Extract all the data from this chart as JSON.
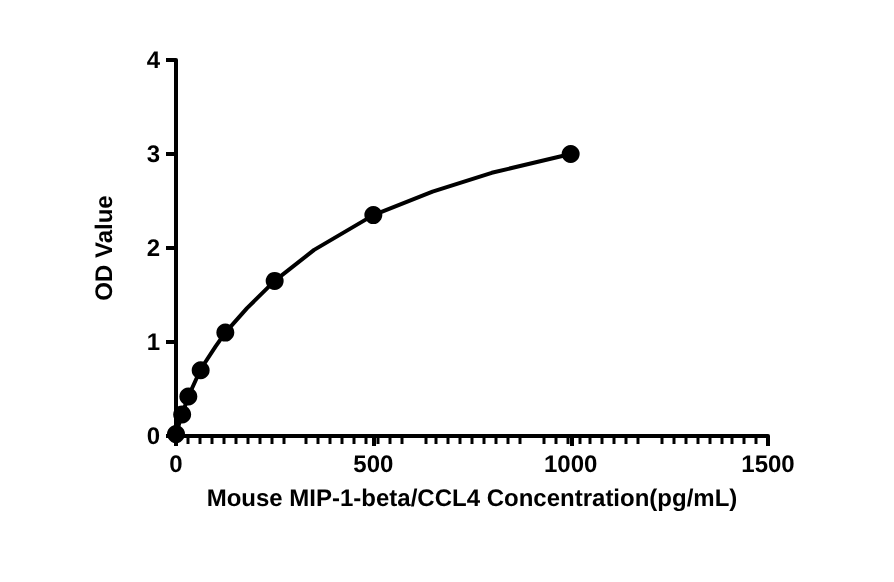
{
  "chart_data": {
    "type": "scatter",
    "xlabel": "Mouse MIP-1-beta/CCL4 Concentration(pg/mL)",
    "ylabel": "OD Value",
    "xlim": [
      0,
      1500
    ],
    "xticks": [
      0,
      500,
      1000,
      1500
    ],
    "ylim": [
      0,
      4
    ],
    "yticks": [
      0,
      1,
      2,
      3,
      4
    ],
    "grid": false,
    "marker": "circle",
    "series": [
      {
        "type": "line",
        "marker": "none",
        "line_style": "solid",
        "color": "#000000",
        "x": [
          0,
          8,
          15.6,
          31.25,
          62.5,
          100,
          125,
          180,
          250,
          350,
          500,
          650,
          800,
          1000
        ],
        "values": [
          0.02,
          0.13,
          0.23,
          0.42,
          0.71,
          0.95,
          1.1,
          1.36,
          1.65,
          1.98,
          2.35,
          2.6,
          2.8,
          3.0
        ]
      },
      {
        "color": "#000000",
        "x": [
          0,
          15.6,
          31.25,
          62.5,
          125,
          250,
          500,
          1000
        ],
        "values": [
          0.02,
          0.23,
          0.42,
          0.7,
          1.1,
          1.65,
          2.35,
          3.0
        ]
      }
    ]
  }
}
